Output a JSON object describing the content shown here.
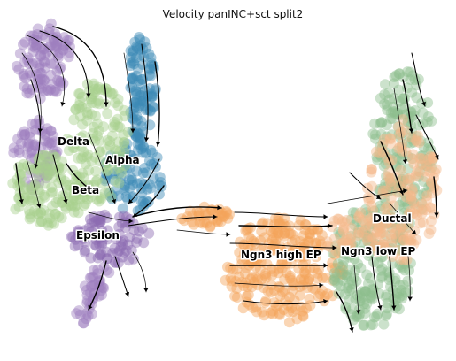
{
  "chart_data": {
    "type": "scatter",
    "title": "Velocity panINC+sct split2",
    "xlabel": "",
    "ylabel": "",
    "axes_visible": false,
    "grid": false,
    "overlay": "velocity streamlines",
    "clusters": [
      {
        "name": "Delta",
        "color": "#9e7fbf"
      },
      {
        "name": "Alpha",
        "color": "#3b89b5"
      },
      {
        "name": "Beta",
        "color": "#a8d08d"
      },
      {
        "name": "Epsilon",
        "color": "#8c6bb1"
      },
      {
        "name": "Ngn3 high EP",
        "color": "#f5a45b"
      },
      {
        "name": "Ngn3 low EP",
        "color": "#8fbf8f"
      },
      {
        "name": "Ductal",
        "color": "#f5b98a"
      }
    ],
    "colors": {
      "stream": "#000000",
      "background": "#ffffff"
    }
  }
}
